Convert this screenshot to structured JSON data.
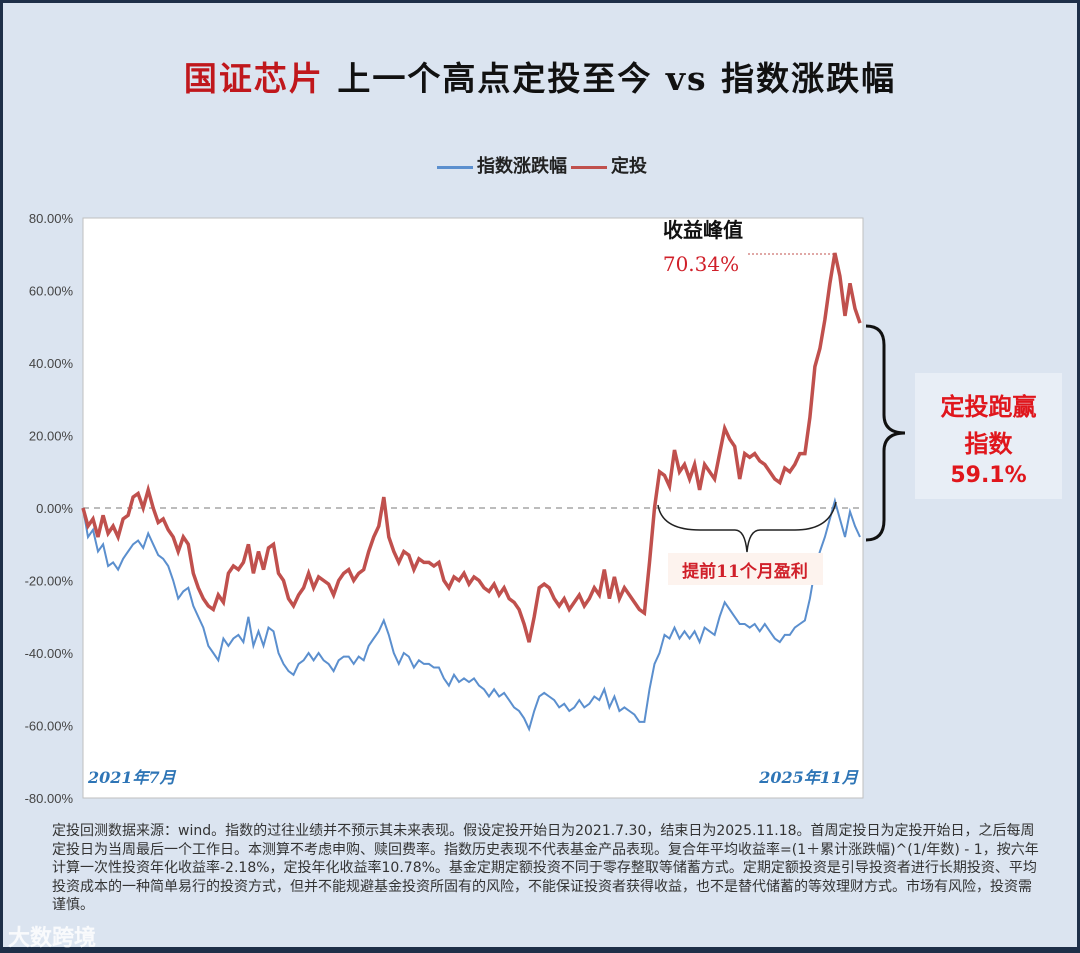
{
  "title": {
    "red": "国证芯片",
    "rest": "上一个高点定投至今 vs 指数涨跌幅"
  },
  "chart_data": {
    "type": "line",
    "ylim": [
      -80,
      80
    ],
    "yticks": [
      "80.00%",
      "60.00%",
      "40.00%",
      "20.00%",
      "0.00%",
      "-20.00%",
      "-40.00%",
      "-60.00%",
      "-80.00%"
    ],
    "ytick_values": [
      80,
      60,
      40,
      20,
      0,
      -20,
      -40,
      -60,
      -80
    ],
    "x_start_label": "2021年7月",
    "x_end_label": "2025年11月",
    "legend_placement": "top",
    "zero_line": "dashed",
    "series": [
      {
        "name": "指数涨跌幅",
        "color": "#5b8fce",
        "values": [
          0,
          -8,
          -6,
          -12,
          -10,
          -16,
          -15,
          -17,
          -14,
          -12,
          -10,
          -9,
          -11,
          -7,
          -10,
          -13,
          -14,
          -16,
          -20,
          -25,
          -23,
          -22,
          -27,
          -30,
          -33,
          -38,
          -40,
          -42,
          -36,
          -38,
          -36,
          -35,
          -37,
          -30,
          -38,
          -34,
          -38,
          -33,
          -34,
          -40,
          -43,
          -45,
          -46,
          -43,
          -42,
          -40,
          -42,
          -40,
          -42,
          -43,
          -45,
          -42,
          -41,
          -41,
          -43,
          -41,
          -42,
          -38,
          -36,
          -34,
          -31,
          -35,
          -40,
          -43,
          -40,
          -41,
          -44,
          -42,
          -43,
          -43,
          -44,
          -44,
          -47,
          -49,
          -46,
          -48,
          -47,
          -48,
          -47,
          -49,
          -50,
          -52,
          -50,
          -52,
          -51,
          -53,
          -55,
          -56,
          -58,
          -61,
          -56,
          -52,
          -51,
          -52,
          -53,
          -55,
          -54,
          -56,
          -55,
          -53,
          -55,
          -54,
          -52,
          -53,
          -50,
          -55,
          -52,
          -56,
          -55,
          -56,
          -57,
          -59,
          -59,
          -50,
          -43,
          -40,
          -35,
          -36,
          -33,
          -36,
          -34,
          -36,
          -34,
          -37,
          -33,
          -34,
          -35,
          -30,
          -26,
          -28,
          -30,
          -32,
          -32,
          -33,
          -32,
          -34,
          -32,
          -34,
          -36,
          -37,
          -35,
          -35,
          -33,
          -32,
          -31,
          -25,
          -17,
          -12,
          -8,
          -3,
          2,
          -3,
          -8,
          -1,
          -5,
          -8
        ]
      },
      {
        "name": "定投",
        "color": "#c0504d",
        "values": [
          0,
          -5,
          -3,
          -8,
          -2,
          -7,
          -5,
          -8,
          -3,
          -2,
          3,
          4,
          0,
          5,
          0,
          -4,
          -3,
          -6,
          -8,
          -12,
          -8,
          -10,
          -18,
          -22,
          -25,
          -27,
          -28,
          -24,
          -26,
          -18,
          -16,
          -17,
          -15,
          -10,
          -18,
          -12,
          -17,
          -11,
          -10,
          -18,
          -20,
          -25,
          -27,
          -24,
          -22,
          -18,
          -22,
          -19,
          -20,
          -21,
          -24,
          -20,
          -18,
          -17,
          -20,
          -18,
          -17,
          -12,
          -8,
          -5,
          3,
          -8,
          -12,
          -15,
          -12,
          -13,
          -17,
          -14,
          -15,
          -15,
          -16,
          -15,
          -20,
          -22,
          -19,
          -20,
          -18,
          -21,
          -19,
          -20,
          -22,
          -23,
          -21,
          -24,
          -22,
          -25,
          -26,
          -28,
          -32,
          -37,
          -30,
          -22,
          -21,
          -22,
          -25,
          -27,
          -25,
          -28,
          -26,
          -24,
          -27,
          -25,
          -22,
          -24,
          -17,
          -25,
          -19,
          -25,
          -22,
          -24,
          -26,
          -28,
          -29,
          -15,
          0,
          10,
          9,
          6,
          16,
          10,
          12,
          8,
          12,
          5,
          12,
          10,
          8,
          15,
          22,
          19,
          17,
          8,
          15,
          14,
          15,
          13,
          12,
          10,
          8,
          7,
          11,
          10,
          12,
          15,
          15,
          25,
          39,
          44,
          52,
          62,
          70.34,
          64,
          53,
          62,
          55,
          51
        ]
      }
    ],
    "annotations": {
      "peak_label": "收益峰值",
      "peak_value": "70.34%",
      "early_profit": "提前11个月盈利",
      "win_line1": "定投跑赢",
      "win_line2": "指数",
      "win_value": "59.1%"
    }
  },
  "footnote": "定投回测数据来源：wind。指数的过往业绩并不预示其未来表现。假设定投开始日为2021.7.30，结束日为2025.11.18。首周定投日为定投开始日，之后每周定投日为当周最后一个工作日。本测算不考虑申购、赎回费率。指数历史表现不代表基金产品表现。复合年平均收益率=(1＋累计涨跌幅)^(1/年数) - 1，按六年计算一次性投资年化收益率-2.18%，定投年化收益率10.78%。基金定期定额投资不同于零存整取等储蓄方式。定期定额投资是引导投资者进行长期投资、平均投资成本的一种简单易行的投资方式，但并不能规避基金投资所固有的风险，不能保证投资者获得收益，也不是替代储蓄的等效理财方式。市场有风险，投资需谨慎。",
  "watermark": "大数跨境"
}
